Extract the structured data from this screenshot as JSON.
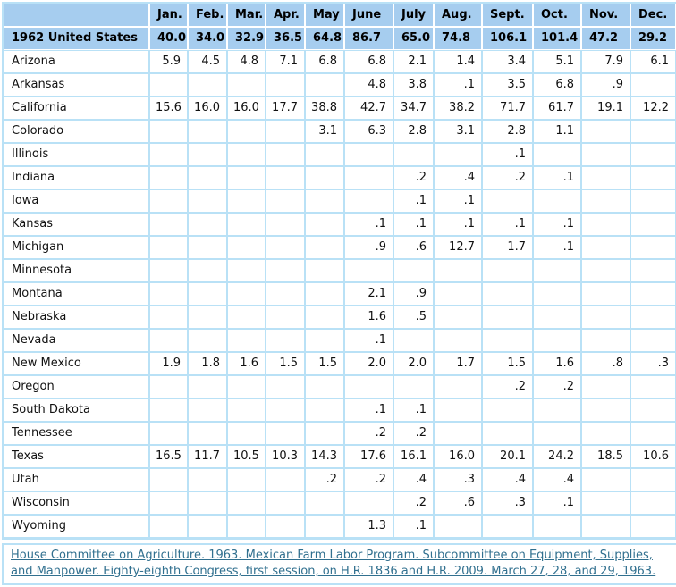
{
  "chart_data": {
    "type": "table",
    "corner_label": "",
    "months": [
      "Jan.",
      "Feb.",
      "Mar.",
      "Apr.",
      "May",
      "June",
      "July",
      "Aug.",
      "Sept.",
      "Oct.",
      "Nov.",
      "Dec."
    ],
    "summary": {
      "label": "1962 United States",
      "values": [
        "40.0",
        "34.0",
        "32.9",
        "36.5",
        "64.8",
        "86.7",
        "65.0",
        "74.8",
        "106.1",
        "101.4",
        "47.2",
        "29.2"
      ]
    },
    "rows": [
      {
        "state": "Arizona",
        "values": [
          "5.9",
          "4.5",
          "4.8",
          "7.1",
          "6.8",
          "6.8",
          "2.1",
          "1.4",
          "3.4",
          "5.1",
          "7.9",
          "6.1"
        ]
      },
      {
        "state": "Arkansas",
        "values": [
          "",
          "",
          "",
          "",
          "",
          "4.8",
          "3.8",
          ".1",
          "3.5",
          "6.8",
          ".9",
          ""
        ]
      },
      {
        "state": "California",
        "values": [
          "15.6",
          "16.0",
          "16.0",
          "17.7",
          "38.8",
          "42.7",
          "34.7",
          "38.2",
          "71.7",
          "61.7",
          "19.1",
          "12.2"
        ]
      },
      {
        "state": "Colorado",
        "values": [
          "",
          "",
          "",
          "",
          "3.1",
          "6.3",
          "2.8",
          "3.1",
          "2.8",
          "1.1",
          "",
          ""
        ]
      },
      {
        "state": "Illinois",
        "values": [
          "",
          "",
          "",
          "",
          "",
          "",
          "",
          "",
          ".1",
          "",
          "",
          ""
        ]
      },
      {
        "state": "Indiana",
        "values": [
          "",
          "",
          "",
          "",
          "",
          "",
          ".2",
          ".4",
          ".2",
          ".1",
          "",
          ""
        ]
      },
      {
        "state": "Iowa",
        "values": [
          "",
          "",
          "",
          "",
          "",
          "",
          ".1",
          ".1",
          "",
          "",
          "",
          ""
        ]
      },
      {
        "state": "Kansas",
        "values": [
          "",
          "",
          "",
          "",
          "",
          ".1",
          ".1",
          ".1",
          ".1",
          ".1",
          "",
          ""
        ]
      },
      {
        "state": "Michigan",
        "values": [
          "",
          "",
          "",
          "",
          "",
          ".9",
          ".6",
          "12.7",
          "1.7",
          ".1",
          "",
          ""
        ]
      },
      {
        "state": "Minnesota",
        "values": [
          "",
          "",
          "",
          "",
          "",
          "",
          "",
          "",
          "",
          "",
          "",
          ""
        ]
      },
      {
        "state": "Montana",
        "values": [
          "",
          "",
          "",
          "",
          "",
          "2.1",
          ".9",
          "",
          "",
          "",
          "",
          ""
        ]
      },
      {
        "state": "Nebraska",
        "values": [
          "",
          "",
          "",
          "",
          "",
          "1.6",
          ".5",
          "",
          "",
          "",
          "",
          ""
        ]
      },
      {
        "state": "Nevada",
        "values": [
          "",
          "",
          "",
          "",
          "",
          ".1",
          "",
          "",
          "",
          "",
          "",
          ""
        ]
      },
      {
        "state": "New Mexico",
        "values": [
          "1.9",
          "1.8",
          "1.6",
          "1.5",
          "1.5",
          "2.0",
          "2.0",
          "1.7",
          "1.5",
          "1.6",
          ".8",
          ".3"
        ]
      },
      {
        "state": "Oregon",
        "values": [
          "",
          "",
          "",
          "",
          "",
          "",
          "",
          "",
          ".2",
          ".2",
          "",
          ""
        ]
      },
      {
        "state": "South Dakota",
        "values": [
          "",
          "",
          "",
          "",
          "",
          ".1",
          ".1",
          "",
          "",
          "",
          "",
          ""
        ]
      },
      {
        "state": "Tennessee",
        "values": [
          "",
          "",
          "",
          "",
          "",
          ".2",
          ".2",
          "",
          "",
          "",
          "",
          ""
        ]
      },
      {
        "state": "Texas",
        "values": [
          "16.5",
          "11.7",
          "10.5",
          "10.3",
          "14.3",
          "17.6",
          "16.1",
          "16.0",
          "20.1",
          "24.2",
          "18.5",
          "10.6"
        ]
      },
      {
        "state": "Utah",
        "values": [
          "",
          "",
          "",
          "",
          ".2",
          ".2",
          ".4",
          ".3",
          ".4",
          ".4",
          "",
          ""
        ]
      },
      {
        "state": "Wisconsin",
        "values": [
          "",
          "",
          "",
          "",
          "",
          "",
          ".2",
          ".6",
          ".3",
          ".1",
          "",
          ""
        ]
      },
      {
        "state": "Wyoming",
        "values": [
          "",
          "",
          "",
          "",
          "",
          "1.3",
          ".1",
          "",
          "",
          "",
          "",
          ""
        ]
      }
    ]
  },
  "footer": {
    "citation": "House Committee on Agriculture. 1963. Mexican Farm Labor Program. Subcommittee on Equipment, Supplies, and Manpower. Eighty-eighth Congress, first session, on H.R. 1836 and H.R. 2009. March 27, 28, and 29, 1963."
  },
  "colors": {
    "header_bg": "#a6cdef",
    "grid": "#b9e1f6",
    "link": "#31708f"
  }
}
